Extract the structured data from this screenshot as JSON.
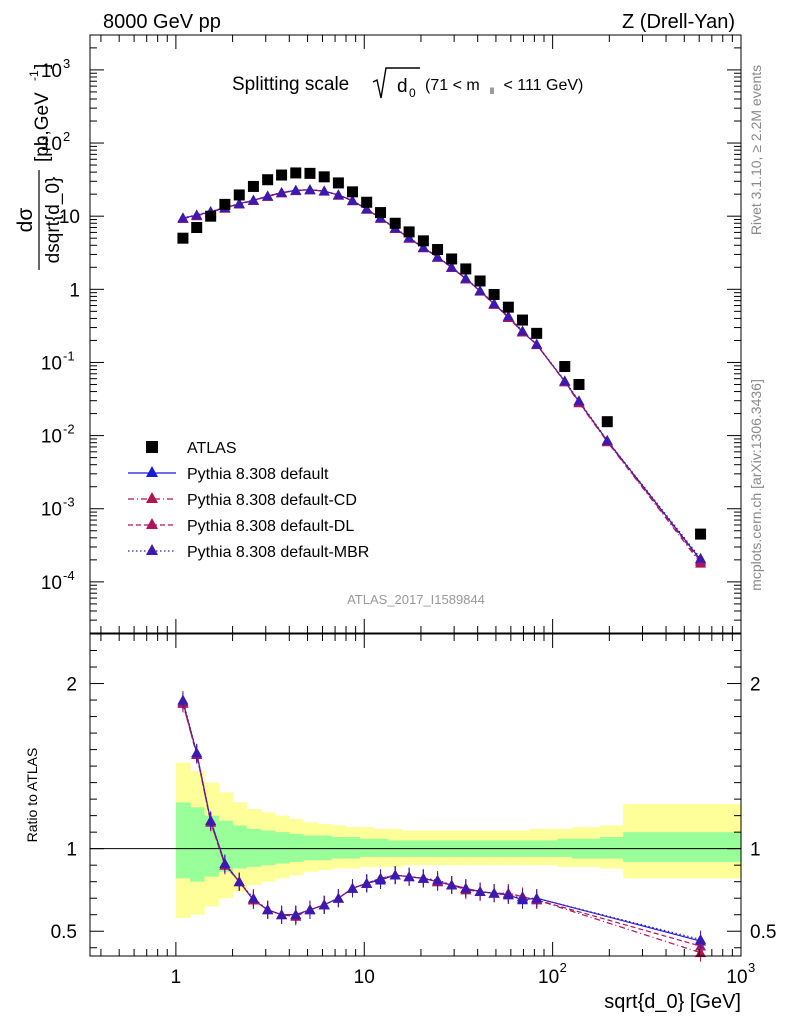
{
  "header": {
    "left": "8000 GeV pp",
    "right": "Z (Drell-Yan)"
  },
  "side_labels": {
    "rivet": "Rivet 3.1.10, ≥ 2.2M events",
    "mcplots": "mcplots.cern.ch [arXiv:1306.3436]"
  },
  "main_title": {
    "prefix": "Splitting scale",
    "symbol": "d",
    "subscript": "0",
    "range": "(71 < m",
    "range_sub": "ll",
    "range_end": " < 111 GeV)"
  },
  "analysis_id": "ATLAS_2017_I1589844",
  "colors": {
    "data": "#000000",
    "default": "#1a1ad6",
    "cd": "#b0134f",
    "dl": "#b0135f",
    "mbr": "#3a1ab0",
    "band_inner": "#99ff99",
    "band_outer": "#ffff99"
  },
  "chart_data": [
    {
      "type": "scatter",
      "panel": "main",
      "title": "",
      "xlabel": "",
      "ylabel_num": "dσ",
      "ylabel_den": "dsqrt{d_0}",
      "ylabel_unit": "[pb,GeV",
      "ylabel_unit_sup": "-1",
      "ylabel_unit_end": "]",
      "x_scale": "log",
      "y_scale": "log",
      "xlim": [
        0.35,
        1000
      ],
      "ylim": [
        2e-05,
        3000
      ],
      "y_tick_labels": [
        {
          "base": "10",
          "exp": "-4"
        },
        {
          "base": "10",
          "exp": "-3"
        },
        {
          "base": "10",
          "exp": "-2"
        },
        {
          "base": "10",
          "exp": "-1"
        },
        {
          "base": "1",
          "exp": ""
        },
        {
          "base": "10",
          "exp": ""
        },
        {
          "base": "10",
          "exp": "2"
        },
        {
          "base": "10",
          "exp": "3"
        }
      ],
      "legend_position": "bottom-left",
      "x": [
        1.09,
        1.29,
        1.53,
        1.82,
        2.17,
        2.58,
        3.07,
        3.64,
        4.33,
        5.15,
        6.13,
        7.29,
        8.66,
        10.3,
        12.2,
        14.6,
        17.3,
        20.6,
        24.5,
        29.1,
        34.6,
        41.2,
        48.9,
        58.2,
        69.2,
        82.3,
        116,
        138,
        195,
        610
      ],
      "series": [
        {
          "name": "ATLAS",
          "marker": "square",
          "values": [
            5.0,
            7.0,
            10.0,
            14.5,
            19.5,
            25.5,
            31.5,
            36.5,
            39.0,
            38.5,
            34.5,
            28.5,
            21.5,
            15.5,
            11.2,
            8.0,
            6.1,
            4.6,
            3.5,
            2.6,
            1.9,
            1.3,
            0.85,
            0.57,
            0.38,
            0.25,
            0.088,
            0.05,
            0.0155,
            0.00045
          ]
        },
        {
          "name": "Pythia 8.308 default",
          "marker": "triangle",
          "line": "solid",
          "values": [
            9.4,
            10.3,
            11.5,
            13.0,
            14.8,
            16.5,
            18.8,
            21.0,
            22.5,
            23.0,
            22.0,
            19.5,
            16.3,
            12.5,
            9.4,
            6.8,
            5.0,
            3.7,
            2.75,
            2.0,
            1.4,
            0.95,
            0.63,
            0.42,
            0.26,
            0.176,
            0.055,
            0.029,
            0.0085,
            0.0002
          ]
        },
        {
          "name": "Pythia 8.308 default-CD",
          "marker": "triangle",
          "line": "dashdot",
          "values": [
            9.3,
            10.1,
            11.3,
            12.8,
            14.6,
            16.3,
            18.6,
            20.8,
            22.3,
            22.8,
            21.9,
            19.3,
            16.2,
            12.4,
            9.3,
            6.8,
            5.0,
            3.7,
            2.74,
            1.98,
            1.38,
            0.94,
            0.62,
            0.41,
            0.26,
            0.175,
            0.054,
            0.028,
            0.0082,
            0.00018
          ]
        },
        {
          "name": "Pythia 8.308 default-DL",
          "marker": "triangle",
          "line": "dashed",
          "values": [
            9.3,
            10.2,
            11.4,
            12.9,
            14.7,
            16.4,
            18.7,
            20.9,
            22.4,
            22.9,
            22.0,
            19.4,
            16.3,
            12.5,
            9.4,
            6.8,
            5.0,
            3.7,
            2.75,
            1.99,
            1.39,
            0.95,
            0.63,
            0.42,
            0.265,
            0.176,
            0.055,
            0.029,
            0.0083,
            0.00019
          ]
        },
        {
          "name": "Pythia 8.308 default-MBR",
          "marker": "triangle",
          "line": "dotted",
          "values": [
            9.5,
            10.4,
            11.6,
            13.1,
            14.9,
            16.6,
            18.9,
            21.1,
            22.6,
            23.1,
            22.1,
            19.6,
            16.4,
            12.6,
            9.5,
            6.9,
            5.1,
            3.75,
            2.78,
            2.02,
            1.41,
            0.96,
            0.64,
            0.43,
            0.27,
            0.178,
            0.056,
            0.03,
            0.0086,
            0.00021
          ]
        }
      ]
    },
    {
      "type": "line",
      "panel": "ratio",
      "title": "",
      "xlabel": "sqrt{d_0} [GeV]",
      "ylabel": "Ratio to ATLAS",
      "x_scale": "log",
      "y_scale": "linear",
      "xlim": [
        0.35,
        1000
      ],
      "ylim": [
        0.35,
        2.3
      ],
      "x_tick_labels": [
        {
          "base": "1",
          "exp": ""
        },
        {
          "base": "10",
          "exp": ""
        },
        {
          "base": "10",
          "exp": "2"
        },
        {
          "base": "10",
          "exp": "3"
        }
      ],
      "y_tick_labels": [
        "0.5",
        "1",
        "2"
      ],
      "reference_line": 1,
      "x": [
        1.09,
        1.29,
        1.53,
        1.82,
        2.17,
        2.58,
        3.07,
        3.64,
        4.33,
        5.15,
        6.13,
        7.29,
        8.66,
        10.3,
        12.2,
        14.6,
        17.3,
        20.6,
        24.5,
        29.1,
        34.6,
        41.2,
        48.9,
        58.2,
        69.2,
        82.3,
        610
      ],
      "uncertainty_bands": {
        "edges": [
          1.0,
          1.19,
          1.41,
          1.68,
          2.0,
          2.37,
          2.82,
          3.35,
          3.98,
          4.73,
          5.62,
          6.68,
          7.94,
          9.44,
          11.2,
          13.3,
          15.8,
          18.8,
          22.4,
          26.6,
          31.6,
          37.6,
          44.7,
          53.1,
          63.1,
          75.0,
          89.1,
          106,
          126,
          150,
          178,
          237,
          1000
        ],
        "inner_lo": [
          0.82,
          0.8,
          0.83,
          0.86,
          0.88,
          0.89,
          0.9,
          0.91,
          0.92,
          0.93,
          0.93,
          0.94,
          0.94,
          0.95,
          0.95,
          0.95,
          0.95,
          0.95,
          0.95,
          0.95,
          0.95,
          0.95,
          0.95,
          0.95,
          0.95,
          0.95,
          0.95,
          0.95,
          0.94,
          0.94,
          0.94,
          0.92
        ],
        "inner_hi": [
          1.28,
          1.25,
          1.2,
          1.17,
          1.14,
          1.12,
          1.11,
          1.1,
          1.09,
          1.08,
          1.08,
          1.07,
          1.07,
          1.06,
          1.06,
          1.05,
          1.05,
          1.05,
          1.05,
          1.05,
          1.05,
          1.05,
          1.05,
          1.05,
          1.05,
          1.05,
          1.05,
          1.06,
          1.06,
          1.06,
          1.07,
          1.1
        ],
        "outer_lo": [
          0.58,
          0.6,
          0.65,
          0.7,
          0.74,
          0.78,
          0.8,
          0.82,
          0.84,
          0.86,
          0.87,
          0.88,
          0.88,
          0.89,
          0.89,
          0.89,
          0.9,
          0.9,
          0.9,
          0.9,
          0.9,
          0.9,
          0.9,
          0.9,
          0.9,
          0.9,
          0.9,
          0.89,
          0.89,
          0.89,
          0.88,
          0.82
        ],
        "outer_hi": [
          1.52,
          1.47,
          1.4,
          1.34,
          1.28,
          1.24,
          1.22,
          1.2,
          1.18,
          1.16,
          1.15,
          1.14,
          1.13,
          1.13,
          1.12,
          1.12,
          1.11,
          1.11,
          1.11,
          1.11,
          1.11,
          1.11,
          1.11,
          1.11,
          1.11,
          1.12,
          1.12,
          1.12,
          1.13,
          1.13,
          1.14,
          1.27
        ]
      },
      "series": [
        {
          "name": "Pythia 8.308 default",
          "values": [
            1.89,
            1.58,
            1.17,
            0.91,
            0.8,
            0.69,
            0.63,
            0.6,
            0.6,
            0.63,
            0.66,
            0.7,
            0.76,
            0.79,
            0.81,
            0.84,
            0.83,
            0.82,
            0.8,
            0.78,
            0.76,
            0.74,
            0.73,
            0.72,
            0.69,
            0.7,
            0.44
          ]
        },
        {
          "name": "Pythia 8.308 default-CD",
          "values": [
            1.88,
            1.57,
            1.16,
            0.9,
            0.8,
            0.69,
            0.63,
            0.6,
            0.59,
            0.63,
            0.66,
            0.7,
            0.76,
            0.79,
            0.82,
            0.84,
            0.83,
            0.82,
            0.8,
            0.78,
            0.75,
            0.74,
            0.73,
            0.73,
            0.71,
            0.69,
            0.37
          ]
        },
        {
          "name": "Pythia 8.308 default-DL",
          "values": [
            1.88,
            1.57,
            1.16,
            0.9,
            0.8,
            0.69,
            0.63,
            0.6,
            0.6,
            0.63,
            0.66,
            0.7,
            0.76,
            0.79,
            0.82,
            0.84,
            0.83,
            0.82,
            0.8,
            0.78,
            0.76,
            0.74,
            0.73,
            0.73,
            0.71,
            0.69,
            0.41
          ]
        },
        {
          "name": "Pythia 8.308 default-MBR",
          "values": [
            1.9,
            1.58,
            1.17,
            0.91,
            0.8,
            0.7,
            0.63,
            0.6,
            0.6,
            0.63,
            0.66,
            0.7,
            0.76,
            0.79,
            0.82,
            0.84,
            0.83,
            0.82,
            0.81,
            0.78,
            0.76,
            0.74,
            0.73,
            0.72,
            0.7,
            0.7,
            0.45
          ]
        }
      ]
    }
  ]
}
